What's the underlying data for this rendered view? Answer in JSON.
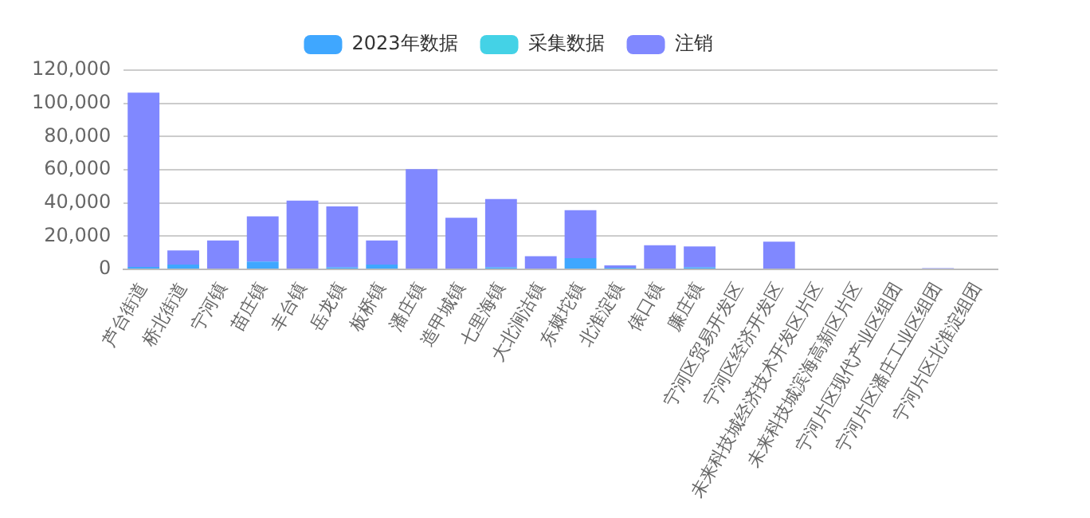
{
  "chart_data": {
    "type": "bar",
    "stacked": true,
    "legend": "top",
    "grid": "y",
    "categories": [
      "芦台街道",
      "桥北街道",
      "宁河镇",
      "苗庄镇",
      "丰台镇",
      "岳龙镇",
      "板桥镇",
      "潘庄镇",
      "造甲城镇",
      "七里海镇",
      "大北涧沽镇",
      "东棘坨镇",
      "北淮淀镇",
      "俵口镇",
      "廉庄镇",
      "宁河区贸易开发区",
      "宁河区经济开发区",
      "未来科技城经济技术开发区片区",
      "未来科技城滨海高新区片区",
      "宁河片区现代产业区组团",
      "宁河片区潘庄工业区组团",
      "宁河片区北淮淀组团"
    ],
    "ylim": [
      0,
      120000
    ],
    "yticks": [
      {
        "value": 0,
        "label": "0"
      },
      {
        "value": 20000,
        "label": "20,000"
      },
      {
        "value": 40000,
        "label": "40,000"
      },
      {
        "value": 60000,
        "label": "60,000"
      },
      {
        "value": 80000,
        "label": "80,000"
      },
      {
        "value": 100000,
        "label": "100,000"
      },
      {
        "value": 120000,
        "label": "120,000"
      }
    ],
    "series": [
      {
        "name": "2023年数据",
        "color": "#3fa7ff",
        "values": [
          1500,
          2900,
          0,
          4700,
          0,
          1200,
          2900,
          0,
          0,
          1200,
          0,
          6800,
          1000,
          500,
          1200,
          0,
          0,
          0,
          0,
          0,
          0,
          0
        ]
      },
      {
        "name": "采集数据",
        "color": "#44d2e6",
        "values": [
          0,
          0,
          0,
          0,
          0,
          0,
          0,
          0,
          0,
          0,
          0,
          0,
          0,
          0,
          0,
          0,
          0,
          0,
          0,
          0,
          0,
          0
        ]
      },
      {
        "name": "注销",
        "color": "#8088ff",
        "values": [
          105000,
          8500,
          17400,
          27200,
          41400,
          36700,
          14500,
          60400,
          31100,
          41200,
          8000,
          28900,
          1400,
          14000,
          12600,
          0,
          16700,
          0,
          0,
          0,
          800,
          0
        ]
      }
    ]
  }
}
